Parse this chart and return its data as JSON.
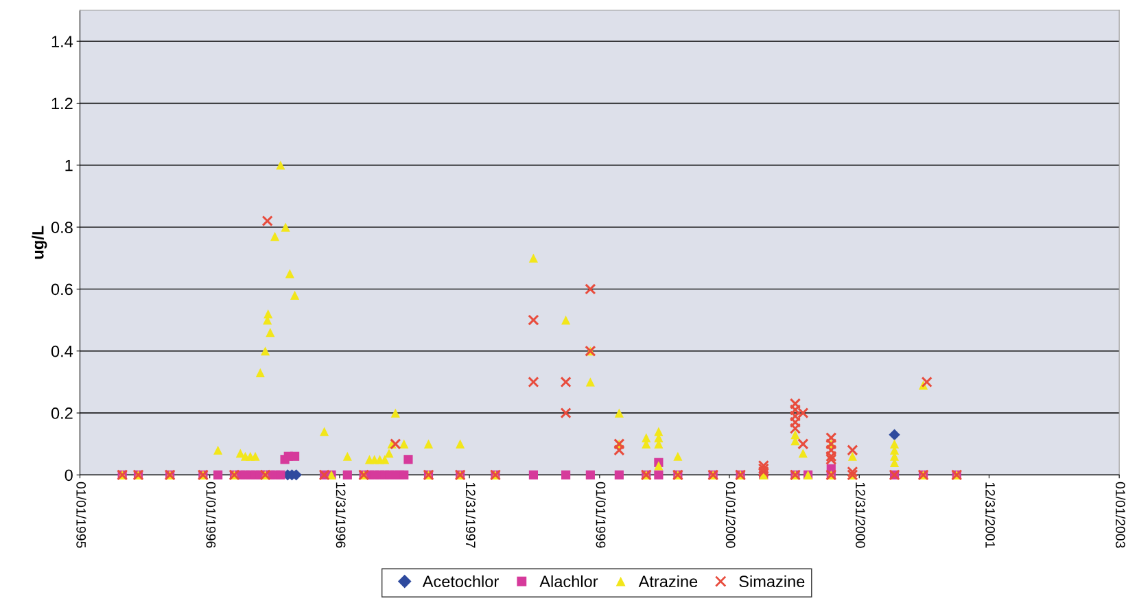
{
  "chart_data": {
    "type": "scatter",
    "ylabel": "ug/L",
    "xlim": [
      "1995-01-01",
      "2003-01-01"
    ],
    "xticks": [
      {
        "value": "1995-01-01",
        "label": "01/01/1995"
      },
      {
        "value": "1996-01-01",
        "label": "01/01/1996"
      },
      {
        "value": "1996-12-31",
        "label": "12/31/1996"
      },
      {
        "value": "1997-12-31",
        "label": "12/31/1997"
      },
      {
        "value": "1999-01-01",
        "label": "01/01/1999"
      },
      {
        "value": "2000-01-01",
        "label": "01/01/2000"
      },
      {
        "value": "2000-12-31",
        "label": "12/31/2000"
      },
      {
        "value": "2001-12-31",
        "label": "12/31/2001"
      },
      {
        "value": "2003-01-01",
        "label": "01/01/2003"
      }
    ],
    "ylim": [
      0,
      1.5
    ],
    "yticks": [
      0,
      0.2,
      0.4,
      0.6,
      0.8,
      1,
      1.2,
      1.4
    ],
    "grid": "y",
    "legend": "bottom",
    "series": [
      {
        "name": "Acetochlor",
        "color": "#2e4a9e",
        "marker": "diamond",
        "x": [
          "1996-08-07",
          "1996-08-19",
          "1996-08-31",
          "2001-04-09"
        ],
        "values": [
          0,
          0,
          0,
          0.13
        ]
      },
      {
        "name": "Alachlor",
        "color": "#d63a9b",
        "marker": "square",
        "x": [
          "1995-04-30",
          "1995-06-14",
          "1995-09-11",
          "1995-12-13",
          "1996-01-24",
          "1996-03-10",
          "1996-03-27",
          "1996-04-10",
          "1996-04-24",
          "1996-05-08",
          "1996-05-22",
          "1996-06-05",
          "1996-06-19",
          "1996-07-04",
          "1996-07-18",
          "1996-11-18",
          "1996-12-08",
          "1997-01-22",
          "1997-03-09",
          "1997-03-25",
          "1997-04-08",
          "1997-04-23",
          "1997-05-07",
          "1997-05-21",
          "1997-06-04",
          "1997-06-18",
          "1997-06-30",
          "1997-09-07",
          "1997-12-05",
          "1998-03-14",
          "1998-06-29",
          "1998-09-28",
          "1998-12-06",
          "1999-02-25",
          "1999-05-12",
          "1999-06-16",
          "1999-08-09",
          "1999-11-16",
          "2000-02-01",
          "2000-04-06",
          "2000-07-04",
          "2000-08-09",
          "2000-10-13",
          "2001-04-09",
          "2001-06-29",
          "2001-10-01",
          "1996-07-30",
          "1996-08-09",
          "1996-08-27",
          "1997-07-12",
          "1999-06-16",
          "2000-10-13"
        ],
        "values": [
          0,
          0,
          0,
          0,
          0,
          0,
          0,
          0,
          0,
          0,
          0,
          0,
          0,
          0,
          0,
          0,
          0,
          0,
          0,
          0,
          0,
          0,
          0,
          0,
          0,
          0,
          0,
          0,
          0,
          0,
          0,
          0,
          0,
          0,
          0,
          0,
          0,
          0,
          0,
          0,
          0,
          0,
          0,
          0,
          0,
          0,
          0.05,
          0.06,
          0.06,
          0.05,
          0.04,
          0.02
        ]
      },
      {
        "name": "Atrazine",
        "color": "#f2e61a",
        "marker": "triangle",
        "x": [
          "1995-04-30",
          "1995-06-14",
          "1995-09-11",
          "1995-12-13",
          "1996-03-10",
          "1996-06-05",
          "1996-12-08",
          "1997-03-09",
          "1997-09-07",
          "1997-12-05",
          "1998-03-14",
          "1999-05-12",
          "1999-08-09",
          "1999-11-16",
          "2000-02-01",
          "2000-04-06",
          "2000-07-04",
          "2000-08-09",
          "2000-10-13",
          "2000-12-12",
          "2001-06-29",
          "2001-10-01",
          "1996-01-24",
          "1996-03-27",
          "1996-04-10",
          "1996-04-24",
          "1996-05-08",
          "1996-05-22",
          "1996-06-05",
          "1996-06-11",
          "1996-06-13",
          "1996-06-19",
          "1996-07-02",
          "1996-07-18",
          "1996-08-01",
          "1996-08-13",
          "1996-08-27",
          "1996-11-18",
          "1997-01-22",
          "1997-03-25",
          "1997-04-08",
          "1997-04-23",
          "1997-05-07",
          "1997-05-19",
          "1997-05-27",
          "1997-06-06",
          "1997-06-30",
          "1997-09-07",
          "1997-12-05",
          "1998-06-29",
          "1998-09-28",
          "1998-12-06",
          "1998-12-06",
          "1999-02-25",
          "1999-02-25",
          "1999-05-12",
          "1999-05-12",
          "1999-06-16",
          "1999-06-16",
          "1999-06-16",
          "1999-06-16",
          "1999-08-09",
          "2000-07-04",
          "2000-07-04",
          "2000-07-26",
          "2000-10-13",
          "2000-12-12",
          "2001-04-09",
          "2001-04-09",
          "2001-04-09",
          "2001-04-09",
          "2001-06-29"
        ],
        "values": [
          0,
          0,
          0,
          0,
          0,
          0,
          0,
          0,
          0,
          0,
          0,
          0,
          0,
          0,
          0,
          0,
          0,
          0,
          0,
          0,
          0,
          0,
          0.08,
          0.07,
          0.06,
          0.06,
          0.06,
          0.33,
          0.4,
          0.5,
          0.52,
          0.46,
          0.77,
          1.0,
          0.8,
          0.65,
          0.58,
          0.14,
          0.06,
          0.05,
          0.05,
          0.05,
          0.05,
          0.07,
          0.1,
          0.2,
          0.1,
          0.1,
          0.1,
          0.7,
          0.5,
          0.3,
          0.4,
          0.2,
          0.1,
          0.12,
          0.1,
          0.14,
          0.12,
          0.1,
          0.03,
          0.06,
          0.13,
          0.11,
          0.07,
          0.1,
          0.06,
          0.1,
          0.08,
          0.06,
          0.04,
          0.29
        ]
      },
      {
        "name": "Simazine",
        "color": "#e84c3d",
        "marker": "cross",
        "x": [
          "1995-04-30",
          "1995-06-14",
          "1995-09-11",
          "1995-12-13",
          "1996-03-10",
          "1996-06-05",
          "1996-11-18",
          "1997-03-09",
          "1997-09-07",
          "1997-12-05",
          "1998-03-14",
          "1999-05-12",
          "1999-08-09",
          "1999-11-16",
          "2000-02-01",
          "2000-07-04",
          "2000-10-13",
          "2000-12-12",
          "2001-04-09",
          "2001-06-29",
          "2001-10-01",
          "1996-06-11",
          "1997-06-06",
          "1998-06-29",
          "1998-06-29",
          "1998-09-28",
          "1998-09-28",
          "1998-12-06",
          "1998-12-06",
          "1999-02-25",
          "1999-02-25",
          "2000-04-06",
          "2000-04-06",
          "2000-04-06",
          "2000-07-04",
          "2000-07-04",
          "2000-07-04",
          "2000-07-04",
          "2000-07-04",
          "2000-07-26",
          "2000-07-26",
          "2000-10-13",
          "2000-10-13",
          "2000-10-13",
          "2000-10-13",
          "2000-10-13",
          "2000-12-12",
          "2000-12-12",
          "2001-07-09"
        ],
        "values": [
          0,
          0,
          0,
          0,
          0,
          0,
          0,
          0,
          0,
          0,
          0,
          0,
          0,
          0,
          0,
          0,
          0,
          0,
          0,
          0,
          0,
          0.82,
          0.1,
          0.3,
          0.5,
          0.3,
          0.2,
          0.6,
          0.4,
          0.1,
          0.08,
          0.01,
          0.02,
          0.03,
          0.23,
          0.21,
          0.19,
          0.17,
          0.15,
          0.2,
          0.1,
          0.12,
          0.1,
          0.08,
          0.06,
          0.05,
          0.08,
          0.01,
          0.3
        ]
      }
    ]
  }
}
